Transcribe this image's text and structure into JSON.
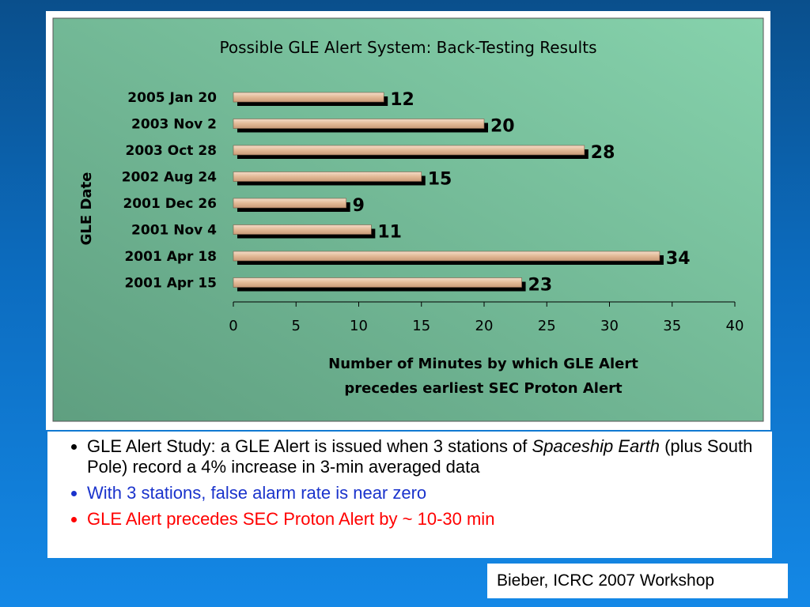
{
  "chart_data": {
    "type": "bar",
    "orientation": "horizontal",
    "title": "Possible GLE Alert System: Back-Testing Results",
    "xlabel_lines": [
      "Number of Minutes by which GLE Alert",
      "precedes earliest SEC Proton Alert"
    ],
    "ylabel": "GLE Date",
    "categories": [
      "2005 Jan 20",
      "2003 Nov  2",
      "2003 Oct 28",
      "2002 Aug 24",
      "2001 Dec 26",
      "2001 Nov  4",
      "2001 Apr 18",
      "2001 Apr 15"
    ],
    "values": [
      12,
      20,
      28,
      15,
      9,
      11,
      34,
      23
    ],
    "data_labels": [
      "12",
      "20",
      "28",
      "15",
      "9",
      "11",
      "34",
      "23"
    ],
    "xlim": [
      0,
      40
    ],
    "xticks": [
      "0",
      "5",
      "10",
      "15",
      "20",
      "25",
      "30",
      "35",
      "40"
    ],
    "grid": false,
    "colors": {
      "bar_fill": "#e8c3a6",
      "bar_shadow": "#000000",
      "plot_bg_light": "#86d2ac",
      "plot_bg_dark": "#5f9f80"
    }
  },
  "notes": [
    {
      "text": "GLE Alert Study: a GLE Alert is issued when 3 stations of ",
      "emphasis": "Spaceship Earth",
      "text_after": " (plus South Pole) record a 4% increase in 3-min averaged data"
    },
    {
      "text": "With 3 stations, false alarm rate is near zero"
    },
    {
      "text": "GLE Alert precedes SEC Proton Alert by ~ 10-30 min"
    }
  ],
  "citation": "Bieber, ICRC 2007 Workshop"
}
